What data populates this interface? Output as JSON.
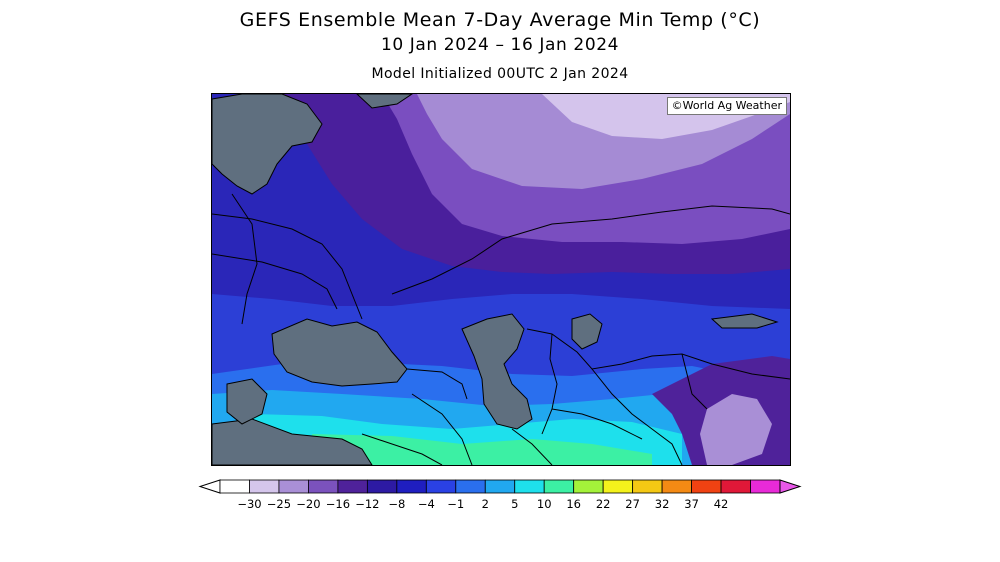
{
  "title": "GEFS Ensemble Mean 7-Day Average Min Temp (°C)",
  "date_range": "10 Jan 2024 – 16 Jan 2024",
  "init": "Model Initialized 00UTC 2 Jan 2024",
  "credit": "©World Ag Weather",
  "legend": {
    "ticks": [
      "−30",
      "−25",
      "−20",
      "−16",
      "−12",
      "−8",
      "−4",
      "−1",
      "2",
      "5",
      "10",
      "16",
      "22",
      "27",
      "32",
      "37",
      "42"
    ],
    "colors": [
      "#ffffff",
      "#d5c6ec",
      "#a98fd6",
      "#7b52bd",
      "#4f229a",
      "#2d1aa3",
      "#1f1ec0",
      "#2a41e4",
      "#2a6fee",
      "#21a8f0",
      "#1ee0ec",
      "#3cf0a4",
      "#a4f23a",
      "#f4f21c",
      "#f4c814",
      "#f48a14",
      "#f04212",
      "#e01838",
      "#e82ad8"
    ],
    "low_arrow_color": "#ffffff",
    "high_arrow_color": "#e858e8"
  },
  "map": {
    "water_color": "#5f6f7f",
    "border_color": "#000000"
  }
}
